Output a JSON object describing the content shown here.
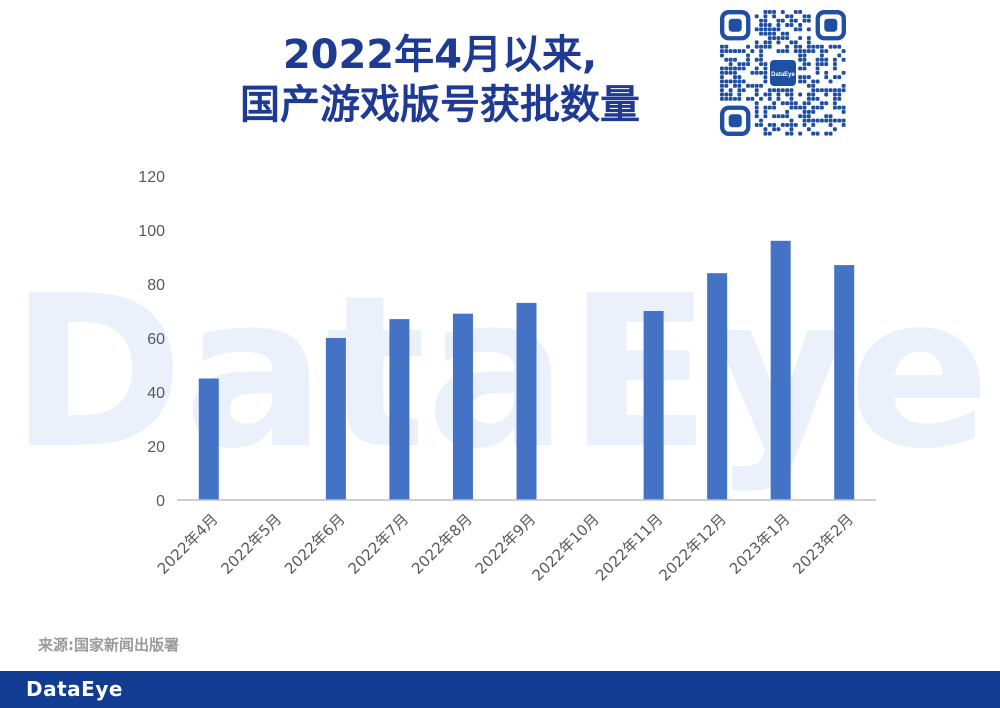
{
  "title": {
    "line1": "2022年4月以来,",
    "line2": "国产游戏版号获批数量"
  },
  "qr": {
    "center_label": "DataEye"
  },
  "watermark": "DataEye",
  "source": "来源:国家新闻出版署",
  "footer": {
    "brand": "DataEye",
    "bg_color": "#123c92"
  },
  "colors": {
    "bar": "#4472c4",
    "title": "#1f3a93",
    "axis": "#bfbfbf"
  },
  "chart_data": {
    "type": "bar",
    "categories": [
      "2022年4月",
      "2022年5月",
      "2022年6月",
      "2022年7月",
      "2022年8月",
      "2022年9月",
      "2022年10月",
      "2022年11月",
      "2022年12月",
      "2023年1月",
      "2023年2月"
    ],
    "values": [
      45,
      0,
      60,
      67,
      69,
      73,
      0,
      70,
      84,
      96,
      87
    ],
    "ylim": [
      0,
      120
    ],
    "yticks": [
      0,
      20,
      40,
      60,
      80,
      100,
      120
    ],
    "grid": false,
    "legend": "none"
  }
}
